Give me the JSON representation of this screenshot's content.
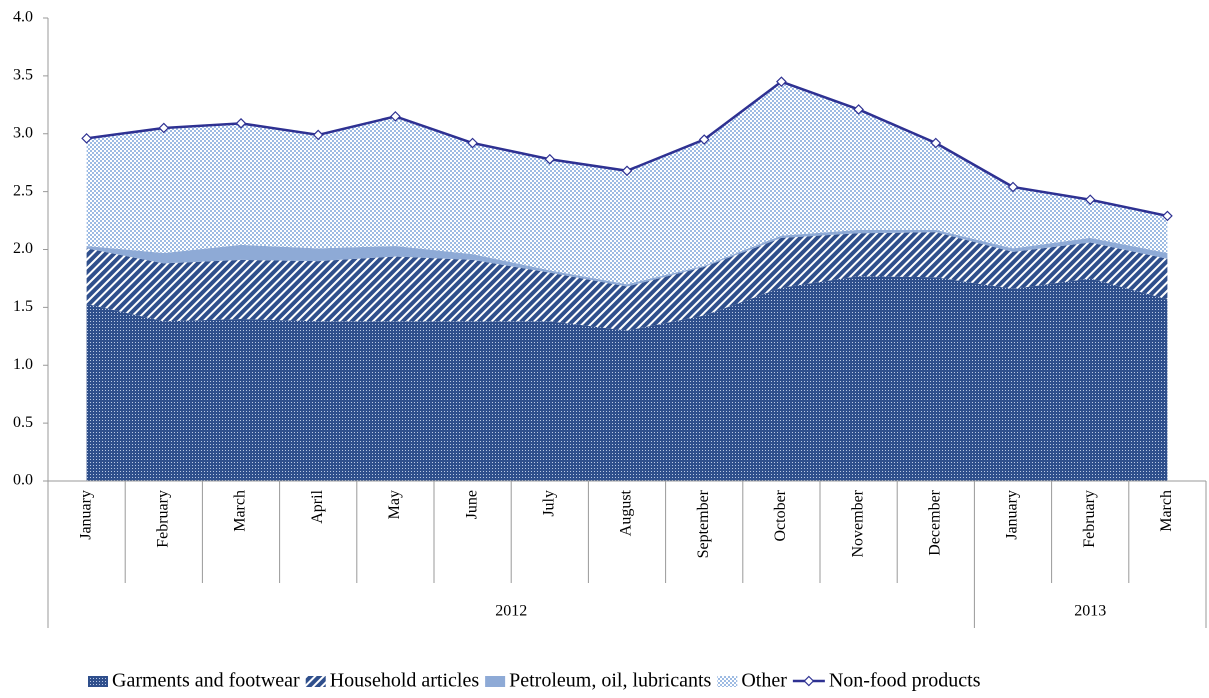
{
  "chart_data": {
    "type": "stacked-area-line",
    "categories": [
      "January",
      "February",
      "March",
      "April",
      "May",
      "June",
      "July",
      "August",
      "September",
      "October",
      "November",
      "December",
      "January",
      "February",
      "March"
    ],
    "groups": [
      {
        "label": "2012",
        "size": 12
      },
      {
        "label": "2013",
        "size": 3
      }
    ],
    "series": [
      {
        "name": "Garments and footwear",
        "color": "#2f4f8c",
        "pattern": "dots",
        "values": [
          1.53,
          1.38,
          1.4,
          1.38,
          1.38,
          1.38,
          1.38,
          1.3,
          1.43,
          1.67,
          1.77,
          1.76,
          1.66,
          1.75,
          1.57
        ]
      },
      {
        "name": "Household articles",
        "color": "#2f4f8c",
        "pattern": "stripes",
        "values": [
          0.48,
          0.5,
          0.51,
          0.52,
          0.56,
          0.53,
          0.42,
          0.38,
          0.42,
          0.43,
          0.37,
          0.39,
          0.32,
          0.31,
          0.35
        ]
      },
      {
        "name": "Petroleum, oil, lubricants",
        "color": "#8eaad6",
        "pattern": "solid",
        "values": [
          0.02,
          0.09,
          0.13,
          0.11,
          0.09,
          0.05,
          0.02,
          0.02,
          0.01,
          0.02,
          0.03,
          0.02,
          0.03,
          0.04,
          0.05
        ]
      },
      {
        "name": "Other",
        "color": "#9dbbe3",
        "pattern": "light-dots",
        "values": [
          0.93,
          1.08,
          1.05,
          0.98,
          1.12,
          0.96,
          0.96,
          0.98,
          1.09,
          1.33,
          1.04,
          0.75,
          0.53,
          0.33,
          0.32
        ]
      },
      {
        "name": "Non-food products",
        "color": "#2e3192",
        "type": "line",
        "values": [
          2.96,
          3.05,
          3.09,
          2.99,
          3.15,
          2.92,
          2.78,
          2.68,
          2.95,
          3.45,
          3.21,
          2.92,
          2.54,
          2.43,
          2.29
        ]
      }
    ],
    "ylim": [
      0,
      4
    ],
    "yticks": [
      {
        "value": 0,
        "label": "0.0"
      },
      {
        "value": 0.5,
        "label": "0.5"
      },
      {
        "value": 1,
        "label": "1.0"
      },
      {
        "value": 1.5,
        "label": "1.5"
      },
      {
        "value": 2,
        "label": "2.0"
      },
      {
        "value": 2.5,
        "label": "2.5"
      },
      {
        "value": 3,
        "label": "3.0"
      },
      {
        "value": 3.5,
        "label": "3.5"
      },
      {
        "value": 4,
        "label": "4.0"
      }
    ],
    "legend": "bottom"
  }
}
